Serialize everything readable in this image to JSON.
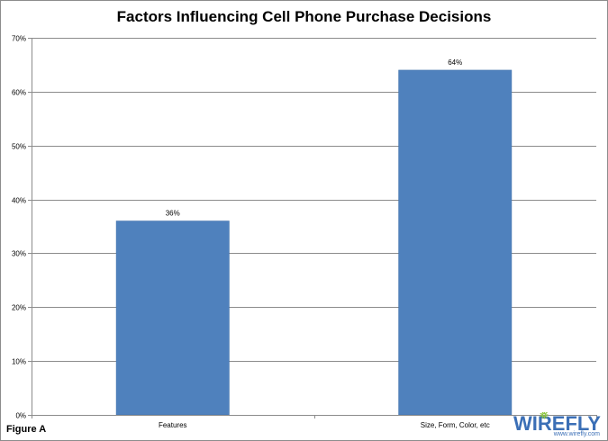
{
  "chart_data": {
    "type": "bar",
    "title": "Factors Influencing Cell Phone Purchase Decisions",
    "categories": [
      "Features",
      "Size, Form, Color, etc"
    ],
    "values": [
      36,
      64
    ],
    "data_labels": [
      "36%",
      "64%"
    ],
    "ylim": [
      0,
      70
    ],
    "yticks": [
      0,
      10,
      20,
      30,
      40,
      50,
      60,
      70
    ],
    "ytick_labels": [
      "0%",
      "10%",
      "20%",
      "30%",
      "40%",
      "50%",
      "60%",
      "70%"
    ],
    "grid": true,
    "legend": "none",
    "bar_color": "#4f81bd",
    "grid_color": "#8c8c8c"
  },
  "footer": {
    "figure_label": "Figure A"
  },
  "logo": {
    "wordmark": "WIREFLY",
    "url": "www.wirefly.com",
    "color": "#3b6fb6",
    "accent_color": "#8cc63f"
  }
}
